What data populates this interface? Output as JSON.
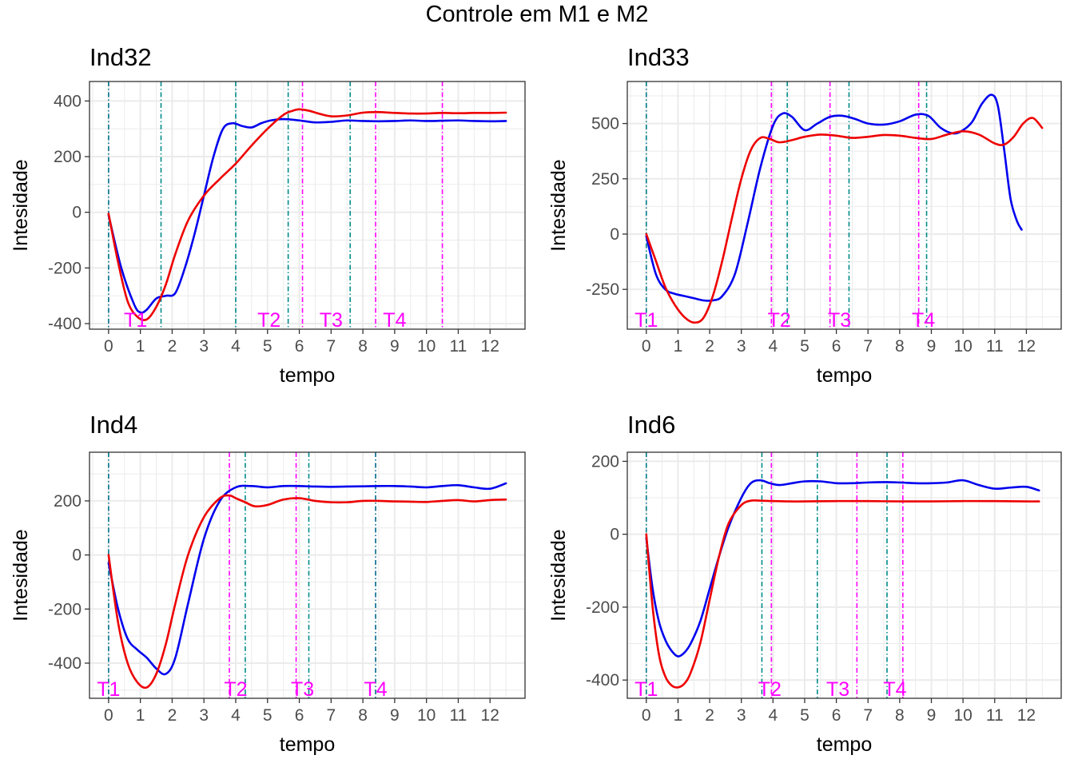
{
  "figure_title": "Controle em M1 e M2",
  "colors": {
    "series_m1": "#0000ee",
    "series_m2": "#ee0000",
    "vline_m1": "#008b8b",
    "vline_m2": "#ff00ff",
    "grid": "#ebebeb",
    "panel_border": "#333333"
  },
  "chart_data": [
    {
      "type": "line",
      "title": "Ind32",
      "xlabel": "tempo",
      "ylabel": "Intesidade",
      "xlim": [
        -0.6,
        13.1
      ],
      "ylim": [
        -420,
        470
      ],
      "xticks": [
        0,
        1,
        2,
        3,
        4,
        5,
        6,
        7,
        8,
        9,
        10,
        11,
        12
      ],
      "yticks": [
        -400,
        -200,
        0,
        200,
        400
      ],
      "grid": true,
      "series": [
        {
          "color_key": "series_m1",
          "x": [
            0,
            0.4,
            0.8,
            1.0,
            1.2,
            1.5,
            1.8,
            2.1,
            2.4,
            2.7,
            3.0,
            3.3,
            3.6,
            3.9,
            4.2,
            4.5,
            4.8,
            5.1,
            5.5,
            6.0,
            6.5,
            7.0,
            7.5,
            8.0,
            8.5,
            9.0,
            9.5,
            10.0,
            10.5,
            11.0,
            11.5,
            12.0,
            12.5
          ],
          "y": [
            -10,
            -200,
            -330,
            -360,
            -350,
            -310,
            -300,
            -290,
            -200,
            -80,
            60,
            200,
            300,
            320,
            310,
            305,
            320,
            330,
            335,
            330,
            323,
            325,
            330,
            328,
            327,
            328,
            330,
            328,
            329,
            330,
            328,
            327,
            328
          ]
        },
        {
          "color_key": "series_m2",
          "x": [
            0,
            0.3,
            0.6,
            0.9,
            1.2,
            1.5,
            1.8,
            2.1,
            2.5,
            3.0,
            3.5,
            4.0,
            4.5,
            5.0,
            5.5,
            5.8,
            6.0,
            6.3,
            6.6,
            7.0,
            7.5,
            8.0,
            8.5,
            9.0,
            9.5,
            10.0,
            10.5,
            11.0,
            11.5,
            12.0,
            12.5
          ],
          "y": [
            -5,
            -180,
            -320,
            -375,
            -385,
            -340,
            -260,
            -150,
            -30,
            60,
            120,
            175,
            240,
            300,
            350,
            365,
            370,
            365,
            355,
            345,
            348,
            358,
            360,
            357,
            355,
            355,
            357,
            356,
            357,
            357,
            358
          ]
        }
      ],
      "vlines_m1": [
        {
          "x": 0.0,
          "label": "T1"
        },
        {
          "x": 1.65,
          "label": ""
        },
        {
          "x": 4.0,
          "label": ""
        },
        {
          "x": 5.65,
          "label": ""
        },
        {
          "x": 7.6,
          "label": ""
        }
      ],
      "vlines_m2": [
        {
          "x": 0.0,
          "label": ""
        },
        {
          "x": 6.1,
          "label": "T2"
        },
        {
          "x": 8.4,
          "label": "T3"
        },
        {
          "x": 10.5,
          "label": "T4"
        }
      ],
      "annotations": [
        {
          "text": "T1",
          "x": 0.85
        },
        {
          "text": "T2",
          "x": 5.05
        },
        {
          "text": "T3",
          "x": 7.0
        },
        {
          "text": "T4",
          "x": 9.0
        }
      ]
    },
    {
      "type": "line",
      "title": "Ind33",
      "xlabel": "tempo",
      "ylabel": "Intesidade",
      "xlim": [
        -0.6,
        13.1
      ],
      "ylim": [
        -430,
        690
      ],
      "xticks": [
        0,
        1,
        2,
        3,
        4,
        5,
        6,
        7,
        8,
        9,
        10,
        11,
        12
      ],
      "yticks": [
        -250,
        0,
        250,
        500
      ],
      "grid": true,
      "series": [
        {
          "color_key": "series_m1",
          "x": [
            0,
            0.3,
            0.6,
            0.9,
            1.2,
            1.5,
            1.8,
            2.1,
            2.4,
            2.8,
            3.2,
            3.6,
            4.0,
            4.3,
            4.6,
            5.0,
            5.4,
            5.8,
            6.2,
            6.6,
            7.0,
            7.5,
            8.0,
            8.5,
            8.9,
            9.3,
            9.7,
            10.0,
            10.3,
            10.6,
            10.9,
            11.1,
            11.3,
            11.5,
            11.7,
            11.85
          ],
          "y": [
            -10,
            -180,
            -250,
            -270,
            -280,
            -290,
            -300,
            -300,
            -280,
            -180,
            50,
            300,
            490,
            545,
            530,
            470,
            500,
            530,
            535,
            520,
            500,
            495,
            510,
            540,
            535,
            480,
            455,
            470,
            510,
            590,
            630,
            580,
            380,
            160,
            60,
            20
          ]
        },
        {
          "color_key": "series_m2",
          "x": [
            0,
            0.3,
            0.6,
            0.9,
            1.2,
            1.5,
            1.8,
            2.1,
            2.4,
            2.7,
            3.0,
            3.3,
            3.6,
            3.9,
            4.2,
            4.6,
            5.0,
            5.5,
            6.0,
            6.5,
            7.0,
            7.5,
            8.0,
            8.5,
            9.0,
            9.5,
            10.0,
            10.5,
            11.0,
            11.3,
            11.6,
            11.9,
            12.2,
            12.5
          ],
          "y": [
            0,
            -120,
            -240,
            -320,
            -375,
            -400,
            -380,
            -280,
            -120,
            70,
            250,
            380,
            435,
            430,
            415,
            425,
            440,
            450,
            445,
            435,
            440,
            448,
            445,
            435,
            430,
            450,
            465,
            450,
            410,
            405,
            440,
            500,
            525,
            480
          ]
        }
      ],
      "vlines_m1": [
        {
          "x": 0.0,
          "label": ""
        },
        {
          "x": 4.45,
          "label": ""
        },
        {
          "x": 6.4,
          "label": ""
        },
        {
          "x": 8.85,
          "label": ""
        }
      ],
      "vlines_m2": [
        {
          "x": 0.0,
          "label": ""
        },
        {
          "x": 3.95,
          "label": ""
        },
        {
          "x": 5.8,
          "label": ""
        },
        {
          "x": 8.6,
          "label": ""
        }
      ],
      "annotations": [
        {
          "text": "T1",
          "x": 0.0
        },
        {
          "text": "T2",
          "x": 4.2
        },
        {
          "text": "T3",
          "x": 6.1
        },
        {
          "text": "T4",
          "x": 8.75
        }
      ]
    },
    {
      "type": "line",
      "title": "Ind4",
      "xlabel": "tempo",
      "ylabel": "Intesidade",
      "xlim": [
        -0.6,
        13.1
      ],
      "ylim": [
        -530,
        380
      ],
      "xticks": [
        0,
        1,
        2,
        3,
        4,
        5,
        6,
        7,
        8,
        9,
        10,
        11,
        12
      ],
      "yticks": [
        -400,
        -200,
        0,
        200
      ],
      "grid": true,
      "series": [
        {
          "color_key": "series_m1",
          "x": [
            0,
            0.3,
            0.6,
            0.9,
            1.2,
            1.5,
            1.8,
            2.1,
            2.5,
            3.0,
            3.5,
            4.0,
            4.5,
            5.0,
            5.5,
            6.0,
            6.5,
            7.0,
            7.5,
            8.0,
            8.5,
            9.0,
            9.5,
            10.0,
            10.5,
            11.0,
            11.5,
            12.0,
            12.5
          ],
          "y": [
            -30,
            -200,
            -310,
            -350,
            -380,
            -420,
            -440,
            -380,
            -180,
            60,
            200,
            250,
            255,
            250,
            255,
            255,
            253,
            252,
            253,
            254,
            255,
            255,
            253,
            250,
            255,
            258,
            250,
            245,
            265
          ]
        },
        {
          "color_key": "series_m2",
          "x": [
            0,
            0.3,
            0.6,
            0.9,
            1.2,
            1.5,
            1.8,
            2.1,
            2.5,
            3.0,
            3.5,
            3.8,
            4.0,
            4.3,
            4.6,
            5.0,
            5.5,
            6.0,
            6.5,
            7.0,
            7.5,
            8.0,
            8.5,
            9.0,
            9.5,
            10.0,
            10.5,
            11.0,
            11.5,
            12.0,
            12.5
          ],
          "y": [
            0,
            -250,
            -400,
            -470,
            -490,
            -440,
            -330,
            -180,
            0,
            140,
            210,
            220,
            210,
            195,
            180,
            185,
            205,
            210,
            200,
            195,
            195,
            200,
            200,
            198,
            197,
            196,
            200,
            203,
            198,
            203,
            205
          ]
        }
      ],
      "vlines_m1": [
        {
          "x": 0.0,
          "label": ""
        },
        {
          "x": 4.3,
          "label": ""
        },
        {
          "x": 6.3,
          "label": ""
        },
        {
          "x": 8.4,
          "label": ""
        }
      ],
      "vlines_m2": [
        {
          "x": 0.0,
          "label": ""
        },
        {
          "x": 3.8,
          "label": ""
        },
        {
          "x": 5.9,
          "label": ""
        },
        {
          "x": 8.4,
          "label": ""
        }
      ],
      "annotations": [
        {
          "text": "T1",
          "x": 0.0
        },
        {
          "text": "T2",
          "x": 4.0
        },
        {
          "text": "T3",
          "x": 6.1
        },
        {
          "text": "T4",
          "x": 8.4
        }
      ]
    },
    {
      "type": "line",
      "title": "Ind6",
      "xlabel": "tempo",
      "ylabel": "Intesidade",
      "xlim": [
        -0.6,
        13.1
      ],
      "ylim": [
        -450,
        225
      ],
      "xticks": [
        0,
        1,
        2,
        3,
        4,
        5,
        6,
        7,
        8,
        9,
        10,
        11,
        12
      ],
      "yticks": [
        -400,
        -200,
        0,
        200
      ],
      "grid": true,
      "series": [
        {
          "color_key": "series_m1",
          "x": [
            0,
            0.2,
            0.4,
            0.6,
            0.8,
            1.0,
            1.2,
            1.4,
            1.7,
            2.0,
            2.3,
            2.6,
            3.0,
            3.3,
            3.6,
            3.9,
            4.2,
            4.6,
            5.0,
            5.5,
            6.0,
            6.5,
            7.0,
            7.5,
            8.0,
            8.5,
            9.0,
            9.5,
            10.0,
            10.5,
            11.0,
            11.5,
            12.0,
            12.4
          ],
          "y": [
            -10,
            -150,
            -240,
            -290,
            -320,
            -335,
            -325,
            -300,
            -240,
            -150,
            -60,
            20,
            100,
            140,
            148,
            140,
            135,
            140,
            145,
            145,
            140,
            140,
            142,
            143,
            142,
            140,
            140,
            142,
            148,
            135,
            125,
            128,
            130,
            120
          ]
        },
        {
          "color_key": "series_m2",
          "x": [
            0,
            0.2,
            0.4,
            0.6,
            0.8,
            1.0,
            1.2,
            1.4,
            1.7,
            2.0,
            2.3,
            2.6,
            3.0,
            3.3,
            3.6,
            4.0,
            4.5,
            5.0,
            6.0,
            7.0,
            8.0,
            9.0,
            10.0,
            11.0,
            12.0,
            12.4
          ],
          "y": [
            0,
            -200,
            -330,
            -390,
            -415,
            -420,
            -410,
            -380,
            -300,
            -180,
            -60,
            30,
            80,
            92,
            92,
            91,
            90,
            90,
            91,
            91,
            90,
            90,
            91,
            91,
            90,
            90
          ]
        }
      ],
      "vlines_m1": [
        {
          "x": 0.0,
          "label": ""
        },
        {
          "x": 3.65,
          "label": ""
        },
        {
          "x": 5.4,
          "label": ""
        },
        {
          "x": 7.6,
          "label": ""
        }
      ],
      "vlines_m2": [
        {
          "x": 0.0,
          "label": ""
        },
        {
          "x": 3.95,
          "label": ""
        },
        {
          "x": 6.65,
          "label": ""
        },
        {
          "x": 8.1,
          "label": ""
        }
      ],
      "annotations": [
        {
          "text": "T1",
          "x": 0.0
        },
        {
          "text": "T2",
          "x": 3.9
        },
        {
          "text": "T3",
          "x": 6.05
        },
        {
          "text": "T4",
          "x": 7.85
        }
      ]
    }
  ]
}
